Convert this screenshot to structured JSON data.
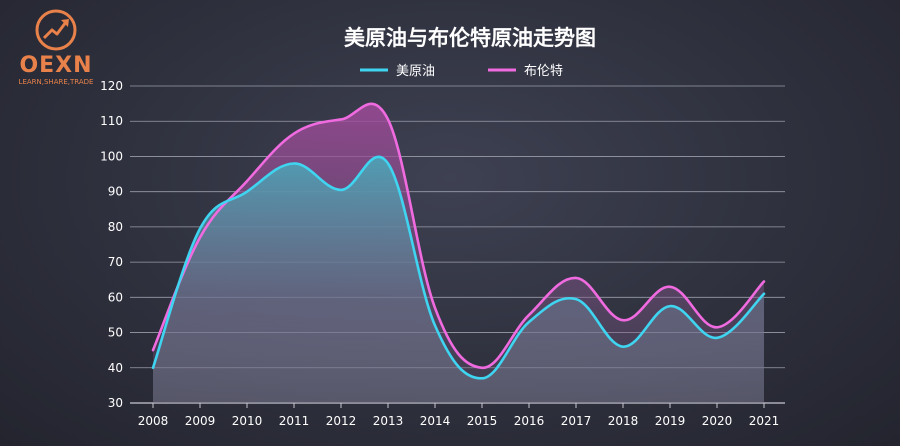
{
  "logo": {
    "name": "OEXN",
    "tagline": "LEARN,SHARE,TRADE",
    "accent": "#e8824a"
  },
  "chart_data": {
    "type": "line",
    "title": "美原油与布伦特原油走势图",
    "xlabel": "",
    "ylabel": "",
    "categories": [
      "2008",
      "2009",
      "2010",
      "2011",
      "2012",
      "2013",
      "2014",
      "2015",
      "2016",
      "2017",
      "2018",
      "2019",
      "2020",
      "2021"
    ],
    "yticks": [
      30,
      40,
      50,
      60,
      70,
      80,
      90,
      100,
      110,
      120
    ],
    "ylim": [
      30,
      120
    ],
    "grid": true,
    "legend_position": "top-center",
    "series": [
      {
        "name": "美原油",
        "color": "#3fd4f0",
        "values": [
          40,
          79.5,
          90,
          98,
          90.5,
          98,
          52,
          37,
          53,
          59.5,
          46,
          57.5,
          48.5,
          61
        ]
      },
      {
        "name": "布伦特",
        "color": "#f06ae0",
        "values": [
          45,
          77,
          93,
          106.5,
          110.5,
          110.5,
          57,
          40,
          55,
          65.5,
          53.5,
          63,
          51.5,
          64.5
        ]
      }
    ]
  }
}
